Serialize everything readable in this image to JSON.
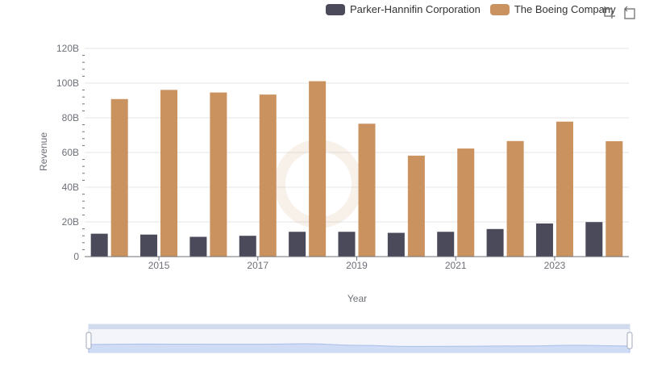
{
  "legend": {
    "items": [
      {
        "label": "Parker-Hannifin Corporation",
        "color": "#4a4a5a"
      },
      {
        "label": "The Boeing Company",
        "color": "#c9925e"
      }
    ]
  },
  "toolbox": {
    "icons": [
      "zoom-icon",
      "restore-icon"
    ]
  },
  "chart_data": {
    "type": "bar",
    "xlabel": "Year",
    "ylabel": "Revenue",
    "ylim": [
      0,
      120
    ],
    "y_ticks": [
      "0",
      "20B",
      "40B",
      "60B",
      "80B",
      "100B",
      "120B"
    ],
    "x_tick_labels": [
      "2015",
      "2017",
      "2019",
      "2021",
      "2023"
    ],
    "categories": [
      "2014",
      "2015",
      "2016",
      "2017",
      "2018",
      "2019",
      "2020",
      "2021",
      "2022",
      "2023",
      "2024"
    ],
    "series": [
      {
        "name": "Parker-Hannifin Corporation",
        "color": "#4a4a5a",
        "values": [
          13.2,
          12.7,
          11.4,
          12.0,
          14.3,
          14.3,
          13.7,
          14.3,
          15.9,
          19.1,
          19.9
        ]
      },
      {
        "name": "The Boeing Company",
        "color": "#c9925e",
        "values": [
          90.8,
          96.1,
          94.6,
          93.4,
          101.1,
          76.6,
          58.2,
          62.3,
          66.6,
          77.8,
          66.5
        ]
      }
    ],
    "grid": true,
    "legend_position": "top-right",
    "zoom_slider": true
  }
}
